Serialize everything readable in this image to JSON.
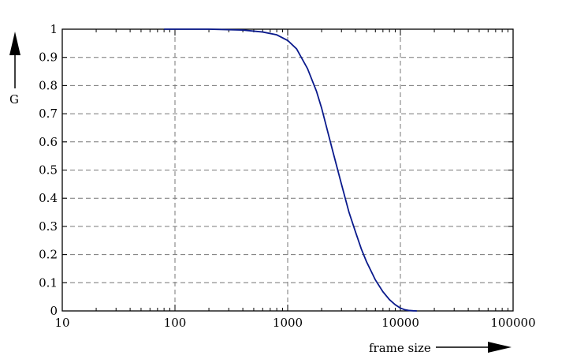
{
  "chart_data": {
    "type": "line",
    "title": "",
    "xlabel": "frame size",
    "ylabel": "G",
    "x_scale": "log",
    "xlim": [
      10,
      100000
    ],
    "ylim": [
      0,
      1
    ],
    "grid": true,
    "x_ticks": [
      "10",
      "100",
      "1000",
      "10000",
      "100000"
    ],
    "y_ticks": [
      "0",
      "0.1",
      "0.2",
      "0.3",
      "0.4",
      "0.5",
      "0.6",
      "0.7",
      "0.8",
      "0.9",
      "1"
    ],
    "line_color": "#0a1a8c",
    "series": [
      {
        "x": [
          80,
          100,
          200,
          400,
          600,
          800,
          1000,
          1200,
          1500,
          1800,
          2000,
          2500,
          3000,
          3500,
          4000,
          4500,
          5000,
          6000,
          7000,
          8000,
          9000,
          10000,
          11000,
          12000,
          13000,
          14000
        ],
        "y": [
          1.0,
          1.0,
          1.0,
          0.997,
          0.99,
          0.98,
          0.96,
          0.93,
          0.86,
          0.78,
          0.72,
          0.57,
          0.45,
          0.35,
          0.28,
          0.22,
          0.175,
          0.11,
          0.068,
          0.04,
          0.022,
          0.01,
          0.004,
          0.0015,
          0.0005,
          0.0
        ]
      }
    ]
  }
}
